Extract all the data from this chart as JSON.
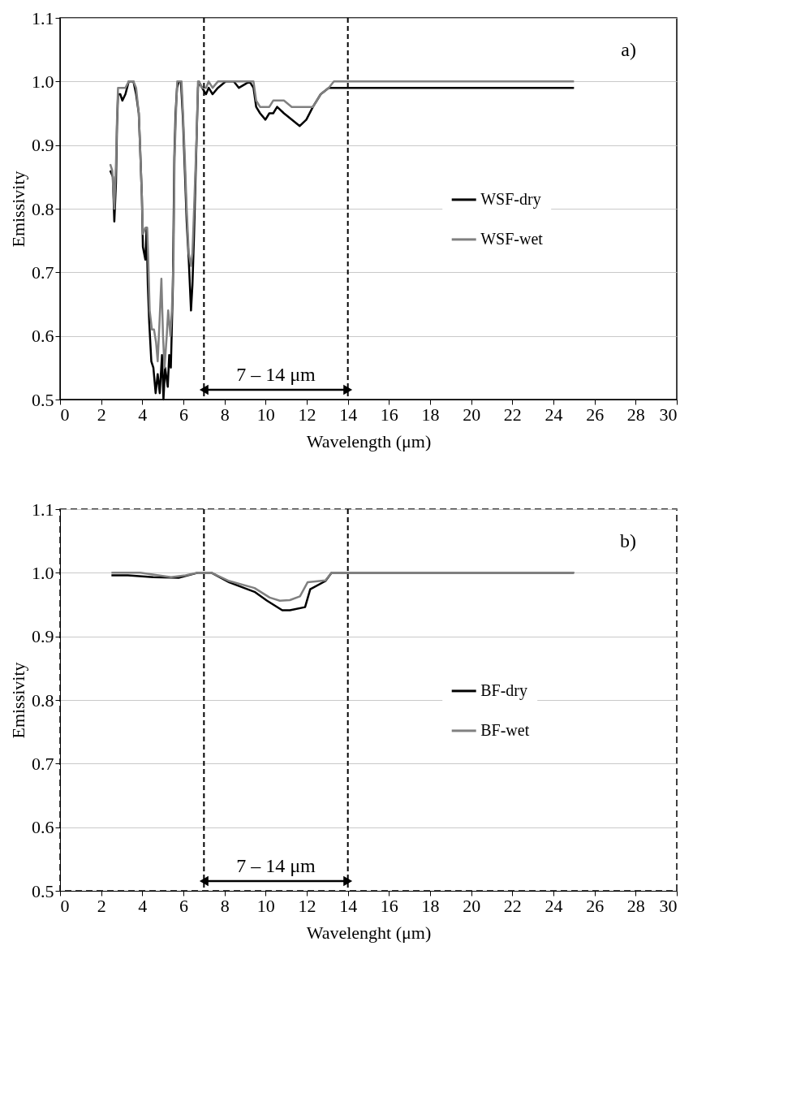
{
  "chart_data": [
    {
      "type": "line",
      "ylabel": "Emissivity",
      "xlabel": "Wavelength (μm)",
      "annotations": [
        "a)",
        "7 – 14 μm"
      ],
      "xlim": [
        0,
        30
      ],
      "xticks": [
        0,
        2,
        4,
        6,
        8,
        10,
        12,
        14,
        16,
        18,
        20,
        22,
        24,
        26,
        28,
        30
      ],
      "ylim": [
        0.5,
        1.1
      ],
      "yticks": [
        0.5,
        0.6,
        0.7,
        0.8,
        0.9,
        {
          "value": 1,
          "label": "1.0"
        },
        1.1
      ],
      "grid": "y",
      "legend": "right",
      "line_style": "solid",
      "marker": "none",
      "ref_lines": [
        {
          "axis": "x",
          "value": 7,
          "label": null,
          "color": "#000000",
          "line_style": "dashed"
        },
        {
          "axis": "x",
          "value": 14,
          "label": null,
          "color": "#000000",
          "line_style": "dashed"
        }
      ],
      "series": [
        {
          "name": "WSF-dry",
          "color": "#000000",
          "x": [
            2.44,
            2.57,
            2.64,
            2.72,
            2.77,
            2.82,
            2.93,
            3.03,
            3.18,
            3.34,
            3.47,
            3.57,
            3.7,
            3.83,
            3.89,
            3.98,
            4.03,
            4.15,
            4.21,
            4.27,
            4.34,
            4.44,
            4.54,
            4.65,
            4.75,
            4.85,
            4.96,
            5.03,
            5.11,
            5.24,
            5.31,
            5.39,
            5.49,
            5.56,
            5.62,
            5.69,
            5.78,
            5.88,
            5.98,
            6.07,
            6.16,
            6.26,
            6.37,
            6.44,
            6.52,
            6.65,
            6.71,
            6.75,
            6.91,
            7.1,
            7.23,
            7.42,
            7.68,
            8.06,
            8.45,
            8.7,
            9.22,
            9.41,
            9.54,
            9.73,
            9.99,
            10.18,
            10.37,
            10.56,
            10.89,
            11.27,
            11.66,
            11.98,
            12.3,
            12.68,
            13.07,
            14.0,
            14.62,
            25
          ],
          "values": [
            0.86,
            0.85,
            0.78,
            0.84,
            0.93,
            0.98,
            0.98,
            0.97,
            0.98,
            1.0,
            1.0,
            1.0,
            0.98,
            0.95,
            0.9,
            0.82,
            0.74,
            0.72,
            0.77,
            0.68,
            0.62,
            0.56,
            0.55,
            0.51,
            0.54,
            0.51,
            0.57,
            0.5,
            0.55,
            0.52,
            0.57,
            0.55,
            0.68,
            0.88,
            0.95,
            0.99,
            1.0,
            1.0,
            0.94,
            0.86,
            0.78,
            0.72,
            0.64,
            0.68,
            0.76,
            0.92,
            0.99,
            1.0,
            0.99,
            0.98,
            0.99,
            0.98,
            0.99,
            1.0,
            1.0,
            0.99,
            1.0,
            0.99,
            0.96,
            0.95,
            0.94,
            0.95,
            0.95,
            0.96,
            0.95,
            0.94,
            0.93,
            0.94,
            0.96,
            0.98,
            0.99,
            0.99,
            0.99,
            0.99
          ]
        },
        {
          "name": "WSF-wet",
          "color": "#808080",
          "x": [
            2.44,
            2.54,
            2.64,
            2.72,
            2.77,
            2.82,
            2.93,
            3.08,
            3.18,
            3.34,
            3.47,
            3.57,
            3.7,
            3.83,
            3.89,
            3.98,
            4.03,
            4.15,
            4.24,
            4.29,
            4.36,
            4.47,
            4.57,
            4.67,
            4.75,
            4.85,
            4.93,
            5.01,
            5.08,
            5.19,
            5.26,
            5.37,
            5.44,
            5.52,
            5.57,
            5.65,
            5.7,
            5.78,
            5.91,
            5.98,
            6.07,
            6.16,
            6.26,
            6.37,
            6.44,
            6.52,
            6.65,
            6.71,
            6.75,
            6.91,
            7.1,
            7.23,
            7.42,
            7.68,
            8.06,
            8.45,
            8.7,
            9.22,
            9.41,
            9.54,
            9.73,
            9.99,
            10.18,
            10.37,
            10.56,
            10.89,
            11.27,
            11.66,
            11.98,
            12.3,
            12.68,
            13.07,
            13.32,
            14.62,
            25
          ],
          "values": [
            0.87,
            0.86,
            0.8,
            0.87,
            0.94,
            0.99,
            0.99,
            0.99,
            0.99,
            1.0,
            1.0,
            1.0,
            0.99,
            0.95,
            0.9,
            0.82,
            0.76,
            0.77,
            0.77,
            0.72,
            0.64,
            0.61,
            0.61,
            0.59,
            0.56,
            0.63,
            0.69,
            0.6,
            0.55,
            0.6,
            0.64,
            0.6,
            0.64,
            0.72,
            0.88,
            0.96,
            1.0,
            1.0,
            1.0,
            0.95,
            0.88,
            0.8,
            0.73,
            0.71,
            0.73,
            0.8,
            0.92,
            1.0,
            1.0,
            0.99,
            0.99,
            1.0,
            0.99,
            1.0,
            1.0,
            1.0,
            1.0,
            1.0,
            1.0,
            0.97,
            0.96,
            0.96,
            0.96,
            0.97,
            0.97,
            0.97,
            0.96,
            0.96,
            0.96,
            0.96,
            0.98,
            0.99,
            1.0,
            1.0,
            1.0
          ]
        }
      ]
    },
    {
      "type": "line",
      "ylabel": "Emissivity",
      "xlabel": "Wavelenght (μm)",
      "annotations": [
        "b)",
        "7 – 14 μm"
      ],
      "xlim": [
        0,
        30
      ],
      "xticks": [
        0,
        2,
        4,
        6,
        8,
        10,
        12,
        14,
        16,
        18,
        20,
        22,
        24,
        26,
        28,
        30
      ],
      "ylim": [
        0.5,
        1.1
      ],
      "yticks": [
        0.5,
        0.6,
        0.7,
        0.8,
        0.9,
        {
          "value": 1,
          "label": "1.0"
        },
        1.1
      ],
      "grid": "y",
      "legend": "right",
      "line_style": "solid",
      "marker": "none",
      "ref_lines": [
        {
          "axis": "x",
          "value": 7,
          "label": null,
          "color": "#000000",
          "line_style": "dashed"
        },
        {
          "axis": "x",
          "value": 14,
          "label": null,
          "color": "#000000",
          "line_style": "dashed"
        }
      ],
      "series": [
        {
          "name": "BF-dry",
          "color": "#000000",
          "x": [
            2.5,
            3.3,
            4.53,
            5.77,
            6.69,
            7.37,
            8.23,
            9.46,
            10.07,
            10.81,
            11.18,
            11.92,
            12.17,
            12.91,
            13.21,
            25
          ],
          "values": [
            0.996,
            0.996,
            0.993,
            0.992,
            1.0,
            1.0,
            0.985,
            0.97,
            0.956,
            0.941,
            0.941,
            0.946,
            0.974,
            0.987,
            1.0,
            1.0
          ]
        },
        {
          "name": "BF-wet",
          "color": "#808080",
          "x": [
            2.5,
            3.9,
            5.4,
            6.1,
            6.69,
            7.37,
            8.23,
            9.46,
            10.2,
            10.69,
            11.18,
            11.67,
            12.04,
            12.91,
            13.21,
            25
          ],
          "values": [
            1.0,
            1.0,
            0.993,
            0.996,
            1.0,
            1.0,
            0.987,
            0.976,
            0.961,
            0.956,
            0.957,
            0.963,
            0.985,
            0.988,
            1.0,
            1.0
          ]
        }
      ]
    }
  ]
}
